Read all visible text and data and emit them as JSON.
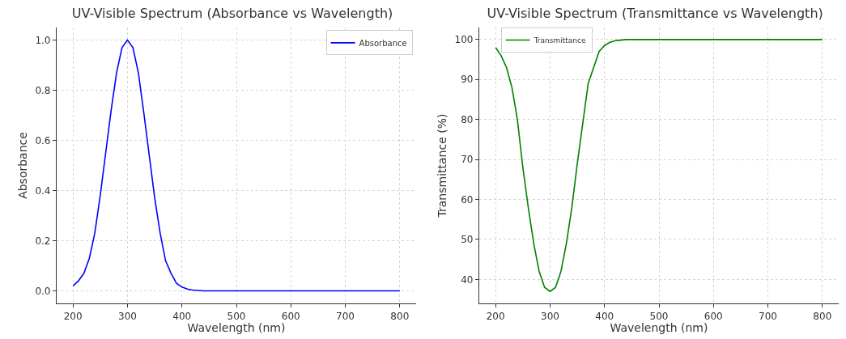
{
  "chart_data": [
    {
      "type": "line",
      "title": "UV-Visible Spectrum (Absorbance vs Wavelength)",
      "xlabel": "Wavelength (nm)",
      "ylabel": "Absorbance",
      "x": [
        200,
        210,
        220,
        230,
        240,
        250,
        260,
        270,
        280,
        290,
        300,
        310,
        320,
        330,
        340,
        350,
        360,
        370,
        380,
        390,
        400,
        410,
        420,
        440,
        500,
        600,
        700,
        800
      ],
      "series": [
        {
          "name": "Absorbance",
          "color": "#0000ff",
          "values": [
            0.02,
            0.04,
            0.07,
            0.13,
            0.23,
            0.38,
            0.55,
            0.72,
            0.87,
            0.97,
            1.0,
            0.97,
            0.87,
            0.71,
            0.54,
            0.37,
            0.23,
            0.12,
            0.07,
            0.03,
            0.015,
            0.007,
            0.003,
            0,
            0,
            0,
            0,
            0
          ]
        }
      ],
      "xlim": [
        170,
        830
      ],
      "ylim": [
        -0.05,
        1.05
      ],
      "xticks": [
        200,
        300,
        400,
        500,
        600,
        700,
        800
      ],
      "yticks": [
        {
          "value": 0,
          "label": "0.0"
        },
        {
          "value": 0.2,
          "label": "0.2"
        },
        {
          "value": 0.4,
          "label": "0.4"
        },
        {
          "value": 0.6,
          "label": "0.6"
        },
        {
          "value": 0.8,
          "label": "0.8"
        },
        {
          "value": 1,
          "label": "1.0"
        }
      ],
      "grid": true,
      "legend": "top right",
      "line_style": "solid",
      "marker": "none"
    },
    {
      "type": "line",
      "title": "UV-Visible Spectrum (Transmittance vs Wavelength)",
      "xlabel": "Wavelength (nm)",
      "ylabel": "Transmittance (%)",
      "x": [
        200,
        210,
        220,
        230,
        240,
        250,
        260,
        270,
        280,
        290,
        300,
        310,
        320,
        330,
        340,
        350,
        360,
        370,
        380,
        390,
        400,
        410,
        420,
        440,
        500,
        600,
        700,
        800
      ],
      "series": [
        {
          "name": "Transmittance",
          "color": "#008000",
          "values": [
            98,
            96,
            93,
            88,
            80,
            68,
            58,
            49,
            42,
            38,
            37,
            38,
            42,
            49,
            58,
            69,
            79,
            89,
            93,
            97,
            98.5,
            99.3,
            99.7,
            100,
            100,
            100,
            100,
            100
          ]
        }
      ],
      "xlim": [
        170,
        830
      ],
      "ylim": [
        34,
        103
      ],
      "xticks": [
        200,
        300,
        400,
        500,
        600,
        700,
        800
      ],
      "yticks": [
        40,
        50,
        60,
        70,
        80,
        90,
        100
      ],
      "grid": true,
      "legend": "top left",
      "line_style": "solid",
      "marker": "none"
    }
  ]
}
